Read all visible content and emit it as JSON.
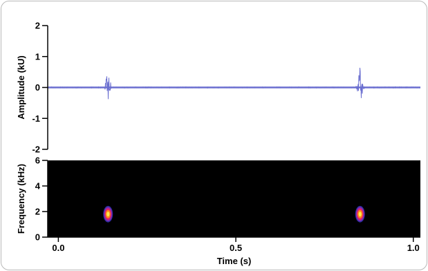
{
  "chart_data": [
    {
      "type": "line",
      "panel": "waveform",
      "title": "",
      "xlabel": "",
      "ylabel": "Amplitude (kU)",
      "xlim": [
        -0.03,
        1.02
      ],
      "ylim": [
        -2,
        2
      ],
      "y_ticks": [
        "2",
        "1",
        "0",
        "-1",
        "-2"
      ],
      "y_tick_values": [
        2,
        1,
        0,
        -1,
        -2
      ],
      "baseline": 0,
      "line_color": "#6b6fd0",
      "bursts": [
        {
          "t": 0.14,
          "peak_pos": 0.5,
          "peak_neg": -0.4
        },
        {
          "t": 0.85,
          "peak_pos": 0.7,
          "peak_neg": -0.55
        }
      ]
    },
    {
      "type": "heatmap",
      "panel": "spectrogram",
      "title": "",
      "xlabel": "Time (s)",
      "ylabel": "Frequency (kHz)",
      "xlim": [
        -0.03,
        1.02
      ],
      "ylim": [
        0,
        6
      ],
      "x_ticks": [
        "0.0",
        "0.5",
        "1.0"
      ],
      "x_tick_values": [
        0.0,
        0.5,
        1.0
      ],
      "y_ticks": [
        "6",
        "4",
        "2",
        "0"
      ],
      "y_tick_values": [
        6,
        4,
        2,
        0
      ],
      "background_color": "#000000",
      "colormap": [
        "#2a2a9e",
        "#7a2fb0",
        "#e0206a",
        "#ff8a1a",
        "#ffe84a"
      ],
      "hotspots": [
        {
          "t": 0.14,
          "freq": 1.8
        },
        {
          "t": 0.85,
          "freq": 1.8
        }
      ]
    }
  ]
}
